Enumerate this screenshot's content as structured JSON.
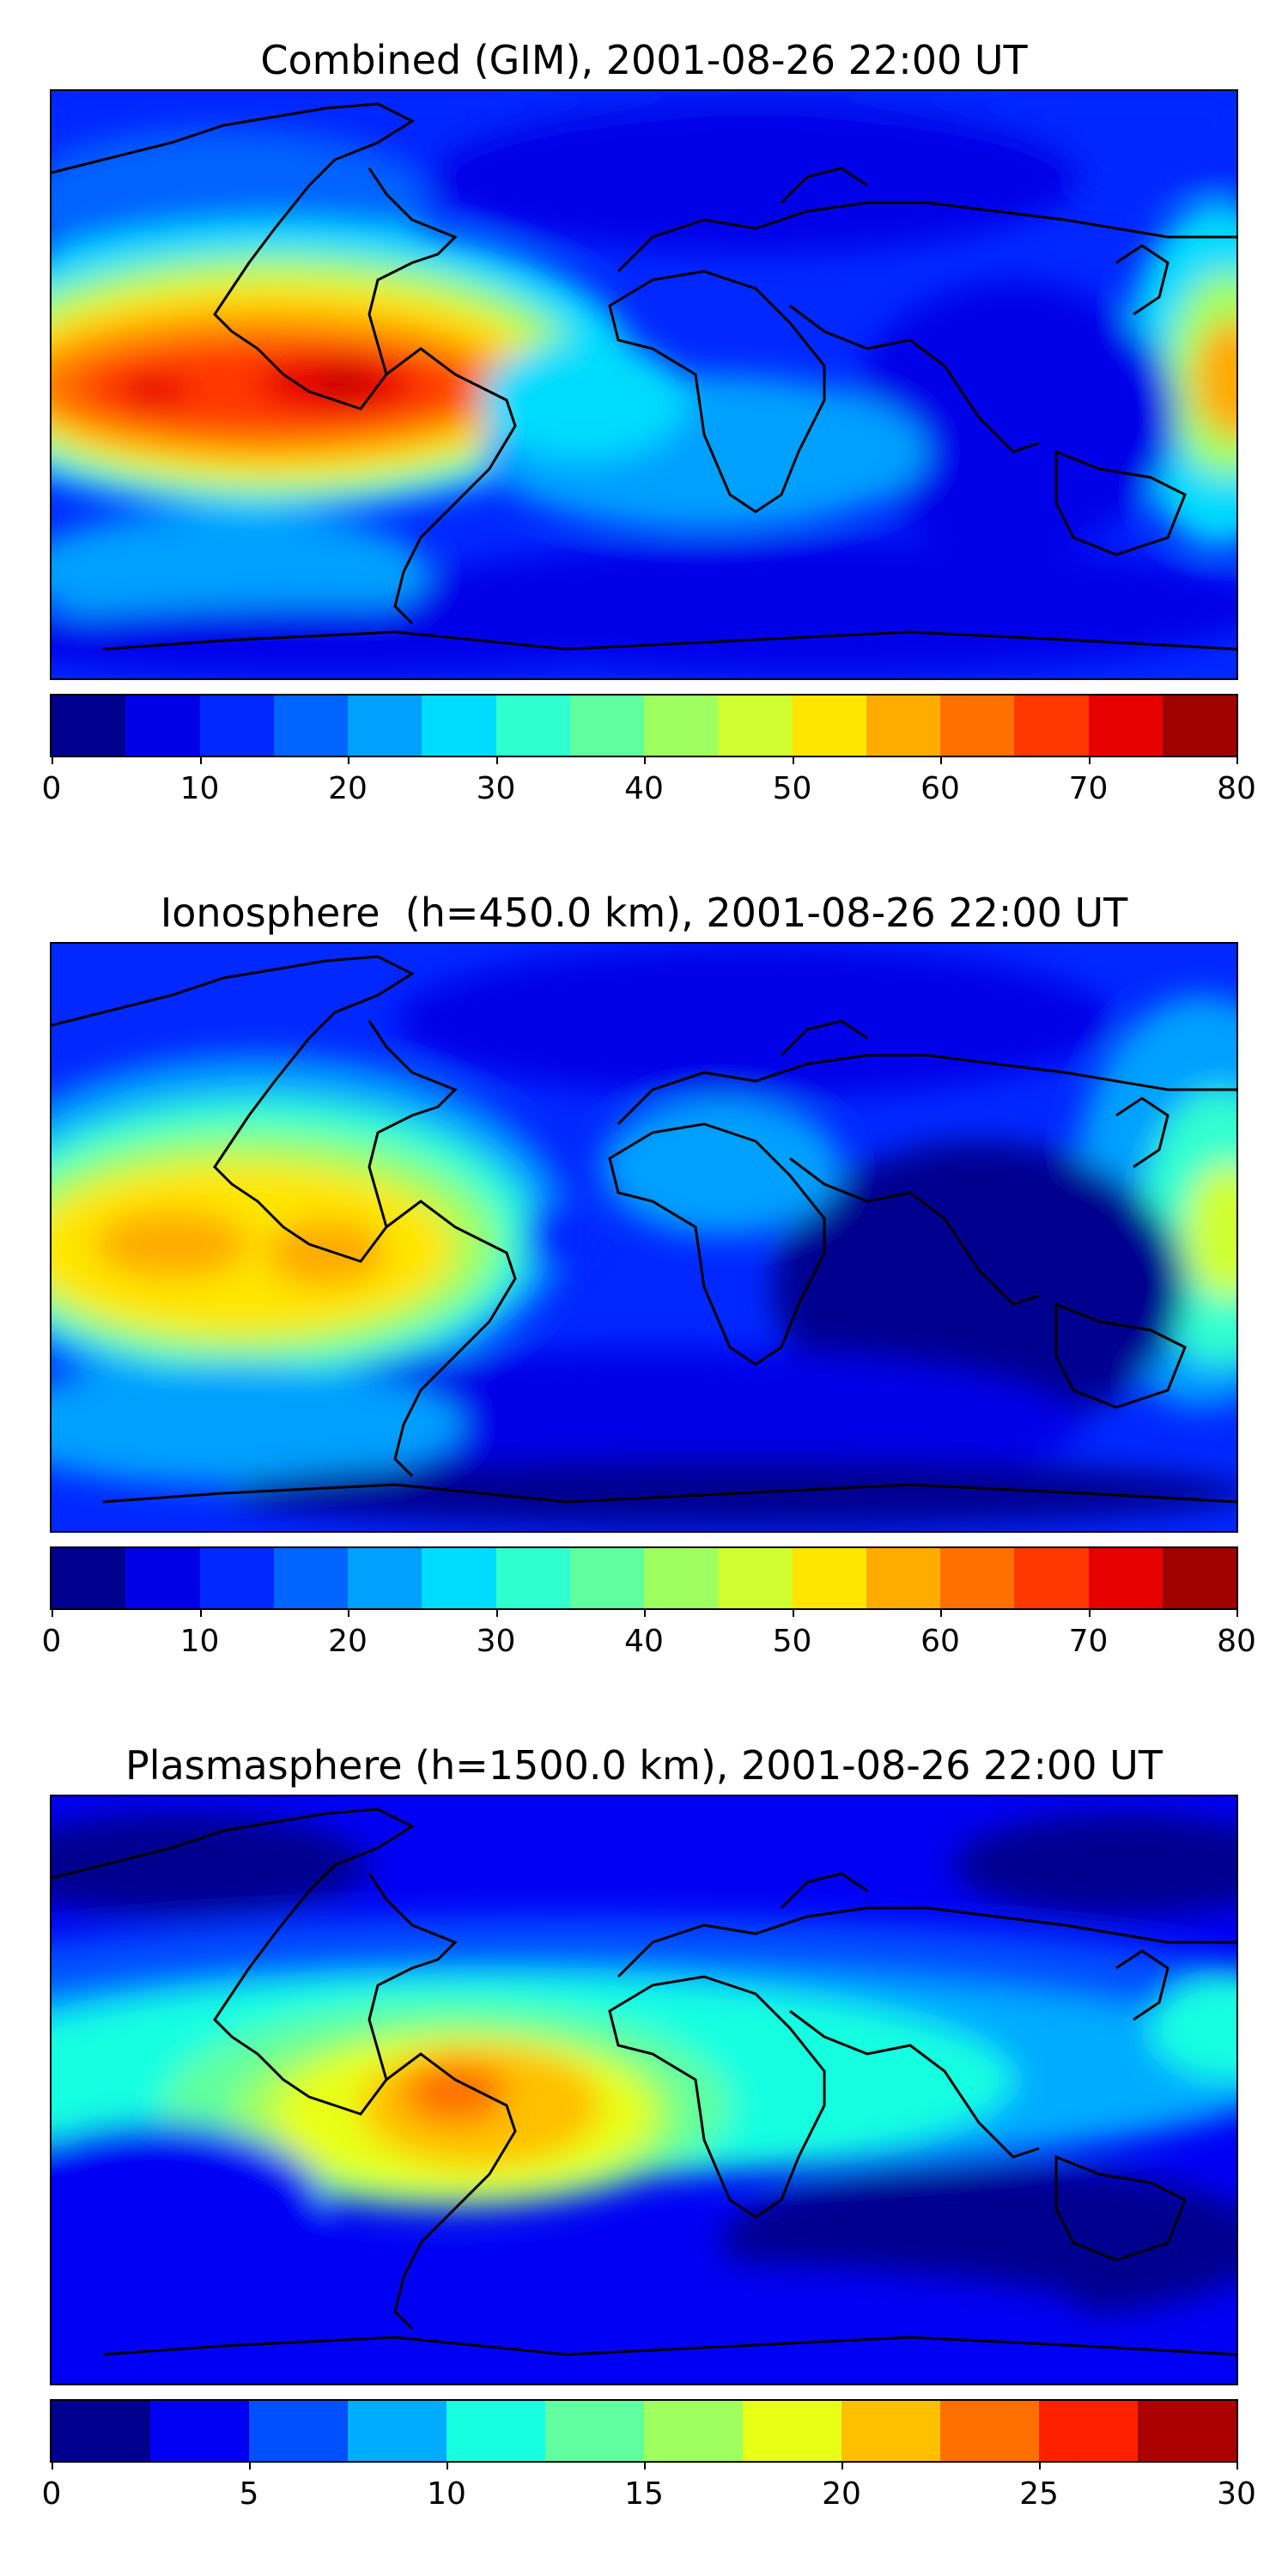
{
  "panels": [
    {
      "title": "Combined (GIM), 2001-08-26 22:00 UT",
      "colorbar": {
        "min": 0,
        "max": 80,
        "ticks": [
          "0",
          "10",
          "20",
          "30",
          "40",
          "50",
          "60",
          "70",
          "80"
        ],
        "colors": [
          "#00008f",
          "#0000e8",
          "#0028ff",
          "#0064ff",
          "#00a0ff",
          "#00dcfe",
          "#30ffcf",
          "#60ff9f",
          "#9fff60",
          "#cfff30",
          "#ffe600",
          "#ffac00",
          "#ff7000",
          "#ff3800",
          "#e60000",
          "#9f0000"
        ]
      }
    },
    {
      "title": "Ionosphere  (h=450.0 km), 2001-08-26 22:00 UT",
      "colorbar": {
        "min": 0,
        "max": 80,
        "ticks": [
          "0",
          "10",
          "20",
          "30",
          "40",
          "50",
          "60",
          "70",
          "80"
        ],
        "colors": [
          "#00008f",
          "#0000e8",
          "#0028ff",
          "#0064ff",
          "#00a0ff",
          "#00dcfe",
          "#30ffcf",
          "#60ff9f",
          "#9fff60",
          "#cfff30",
          "#ffe600",
          "#ffac00",
          "#ff7000",
          "#ff3800",
          "#e60000",
          "#9f0000"
        ]
      }
    },
    {
      "title": "Plasmasphere (h=1500.0 km), 2001-08-26 22:00 UT",
      "colorbar": {
        "min": 0,
        "max": 30,
        "ticks": [
          "0",
          "5",
          "10",
          "15",
          "20",
          "25",
          "30"
        ],
        "colors": [
          "#00008f",
          "#0000f4",
          "#0050ff",
          "#00acff",
          "#16ffe1",
          "#60ff9f",
          "#9fff60",
          "#e8ff16",
          "#ffc000",
          "#ff7000",
          "#ff2000",
          "#ab0000"
        ]
      }
    }
  ]
}
